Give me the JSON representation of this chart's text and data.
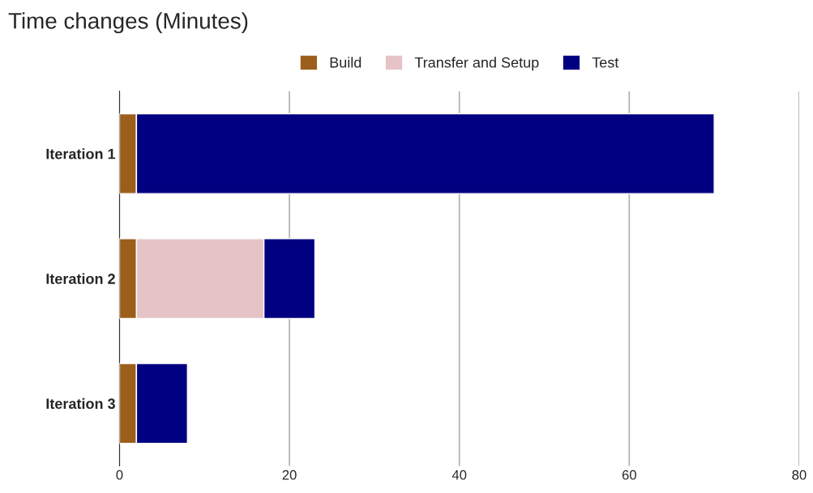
{
  "chart_data": {
    "type": "bar",
    "title": "Time changes (Minutes)",
    "orientation": "horizontal",
    "stacked": true,
    "categories": [
      "Iteration 1",
      "Iteration 2",
      "Iteration 3"
    ],
    "series": [
      {
        "name": "Build",
        "color": "#9c5f1b",
        "values": [
          2,
          2,
          2
        ]
      },
      {
        "name": "Transfer and Setup",
        "color": "#e6c3c6",
        "values": [
          0,
          15,
          0
        ]
      },
      {
        "name": "Test",
        "color": "#000080",
        "values": [
          68,
          6,
          6
        ]
      }
    ],
    "xlim": [
      0,
      80
    ],
    "xticks": [
      0,
      20,
      40,
      60,
      80
    ],
    "grid": "x",
    "legend": "top"
  }
}
